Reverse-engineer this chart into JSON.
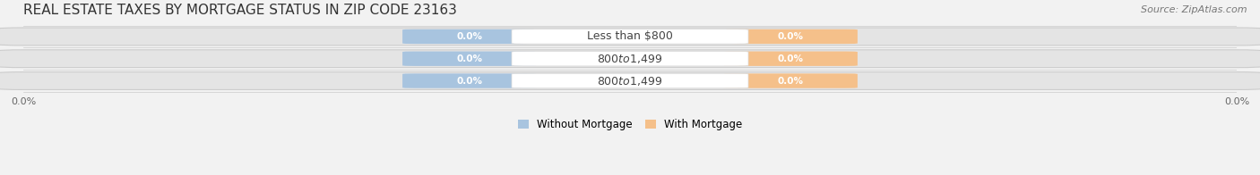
{
  "title": "REAL ESTATE TAXES BY MORTGAGE STATUS IN ZIP CODE 23163",
  "source": "Source: ZipAtlas.com",
  "categories": [
    "Less than $800",
    "$800 to $1,499",
    "$800 to $1,499"
  ],
  "without_mortgage": [
    0.0,
    0.0,
    0.0
  ],
  "with_mortgage": [
    0.0,
    0.0,
    0.0
  ],
  "bar_color_without": "#a8c4df",
  "bar_color_with": "#f5c08a",
  "bg_color": "#f2f2f2",
  "bar_bg_color": "#e4e4e4",
  "legend_label_without": "Without Mortgage",
  "legend_label_with": "With Mortgage",
  "figsize": [
    14.06,
    1.96
  ],
  "dpi": 100,
  "title_fontsize": 11,
  "source_fontsize": 8,
  "axis_label_fontsize": 8,
  "bar_label_fontsize": 7.5,
  "category_fontsize": 9
}
